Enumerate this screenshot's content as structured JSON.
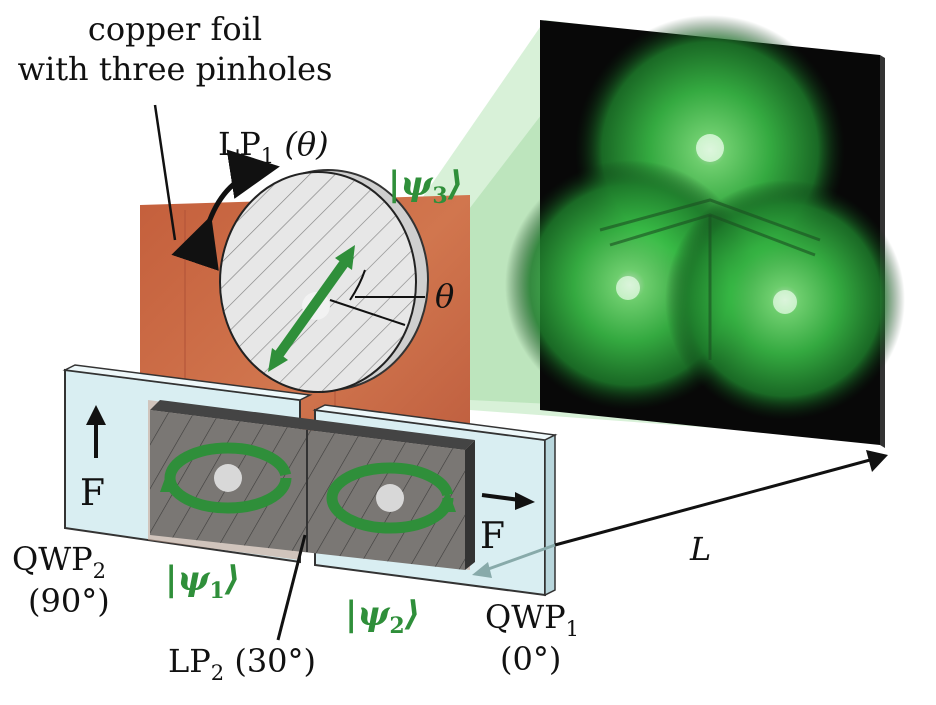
{
  "labels": {
    "foil_line1": "copper foil",
    "foil_line2": "with three pinholes",
    "lp1": "LP",
    "lp1_sub": "1",
    "lp1_arg": " (θ)",
    "theta": "θ",
    "psi3": "ψ",
    "psi3_sub": "3",
    "psi1": "ψ",
    "psi1_sub": "1",
    "psi2": "ψ",
    "psi2_sub": "2",
    "f_left": "F",
    "f_right": "F",
    "qwp2": "QWP",
    "qwp2_sub": "2",
    "qwp2_angle": "(90°)",
    "qwp1": "QWP",
    "qwp1_sub": "1",
    "qwp1_angle": "(0°)",
    "lp2": "LP",
    "lp2_sub": "2",
    "lp2_arg": " (30°)",
    "distance": "L"
  },
  "colors": {
    "copper": "#c8673f",
    "beam_green": "#2f8f3a",
    "screen_bg": "#0a0a0a",
    "spot_green": "#3cc64a",
    "plate_blue": "#d9eef2",
    "psi_text": "#2f8f3a"
  },
  "icons": {
    "rotation_arrow": "curved-double-arrow-icon",
    "polarization_axis": "double-arrow-icon",
    "circular_polarization": "circular-arrow-icon",
    "fast_axis": "arrow-icon"
  }
}
